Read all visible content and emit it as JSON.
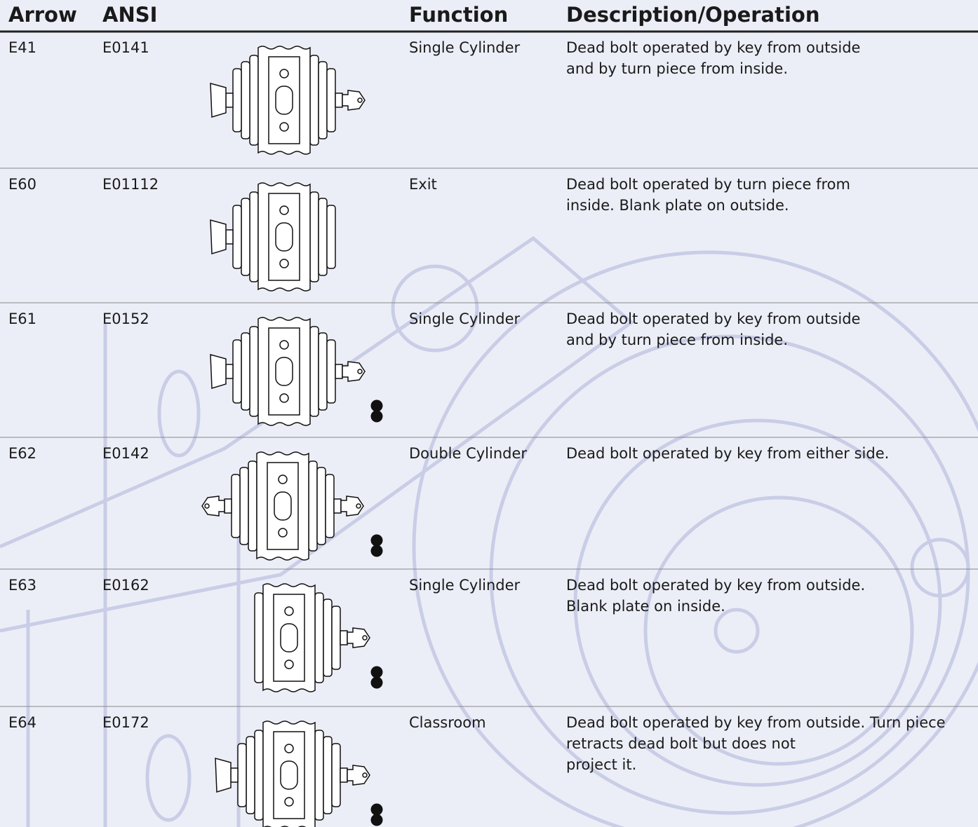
{
  "table": {
    "header": [
      "Arrow",
      "ANSI",
      "Function",
      "Description/Operation"
    ],
    "rows": [
      {
        "arrow": "E41",
        "ansi": "E0141",
        "function": "Single Cylinder",
        "description": [
          "Dead bolt operated by key from outside",
          "and by turn piece from inside."
        ]
      },
      {
        "arrow": "E60",
        "ansi": "E01112",
        "function": "Exit",
        "description": [
          "Dead bolt operated by turn piece from",
          "inside. Blank plate on outside."
        ]
      },
      {
        "arrow": "E61",
        "ansi": "E0152",
        "function": "Single Cylinder",
        "description": [
          "Dead bolt operated by key from outside",
          "and by turn piece from inside."
        ]
      },
      {
        "arrow": "E62",
        "ansi": "E0142",
        "function": "Double Cylinder",
        "description": [
          "Dead bolt operated by key from either side."
        ]
      },
      {
        "arrow": "E63",
        "ansi": "E0162",
        "function": "Single Cylinder",
        "description": [
          "Dead bolt operated by key from outside.",
          "Blank plate on inside."
        ]
      },
      {
        "arrow": "E64",
        "ansi": "E0172",
        "function": "Classroom",
        "description": [
          "Dead bolt operated by key from outside. Turn piece",
          "retracts dead bolt but does not",
          "project it."
        ]
      }
    ]
  }
}
